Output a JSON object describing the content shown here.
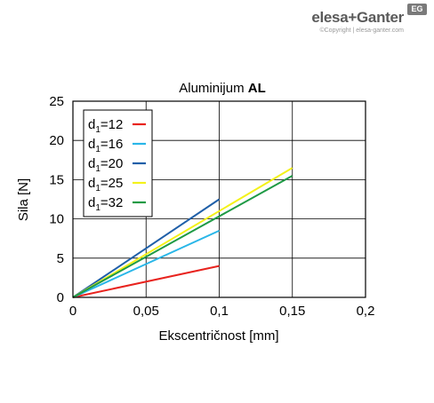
{
  "brand": {
    "name": "elesa+Ganter",
    "badge": "EG",
    "copyright": "©Copyright | elesa-ganter.com"
  },
  "chart_data": {
    "type": "line",
    "title_main": "Aluminijum",
    "title_bold": "AL",
    "xlabel": "Ekscentričnost [mm]",
    "ylabel": "Sila [N]",
    "xlim": [
      0,
      0.2
    ],
    "ylim": [
      0,
      25
    ],
    "x_ticks": [
      0,
      0.05,
      0.1,
      0.15,
      0.2
    ],
    "x_tick_labels": [
      "0",
      "0,05",
      "0,1",
      "0,15",
      "0,2"
    ],
    "y_ticks": [
      0,
      5,
      10,
      15,
      20,
      25
    ],
    "y_tick_labels": [
      "0",
      "5",
      "10",
      "15",
      "20",
      "25"
    ],
    "grid": true,
    "legend_position": "top-left",
    "series": [
      {
        "name": "d1=12",
        "label_main": "d",
        "label_sub": "1",
        "label_rest": "=12",
        "color": "#e8231e",
        "x": [
          0,
          0.1
        ],
        "y": [
          0,
          4
        ]
      },
      {
        "name": "d1=16",
        "label_main": "d",
        "label_sub": "1",
        "label_rest": "=16",
        "color": "#29b6e8",
        "x": [
          0,
          0.1
        ],
        "y": [
          0,
          8.5
        ]
      },
      {
        "name": "d1=20",
        "label_main": "d",
        "label_sub": "1",
        "label_rest": "=20",
        "color": "#1f5fa8",
        "x": [
          0,
          0.1
        ],
        "y": [
          0,
          12.5
        ]
      },
      {
        "name": "d1=25",
        "label_main": "d",
        "label_sub": "1",
        "label_rest": "=25",
        "color": "#f4f21a",
        "x": [
          0,
          0.15
        ],
        "y": [
          0,
          16.5
        ]
      },
      {
        "name": "d1=32",
        "label_main": "d",
        "label_sub": "1",
        "label_rest": "=32",
        "color": "#1f9a45",
        "x": [
          0,
          0.15
        ],
        "y": [
          0,
          15.5
        ]
      }
    ]
  }
}
